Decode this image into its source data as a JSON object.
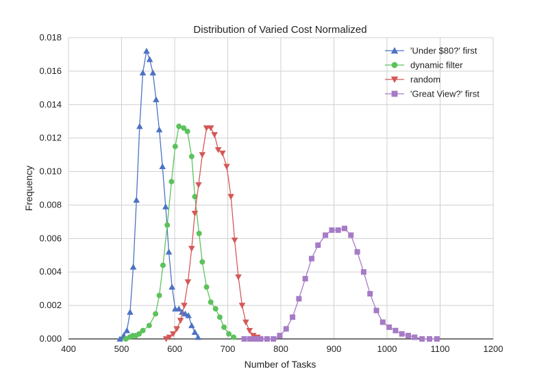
{
  "chart_data": {
    "type": "line",
    "title": "Distribution of Varied Cost Normalized",
    "xlabel": "Number of Tasks",
    "ylabel": "Frequency",
    "xlim": [
      400,
      1200
    ],
    "ylim": [
      0,
      0.018
    ],
    "x_ticks": [
      400,
      500,
      600,
      700,
      800,
      900,
      1000,
      1100,
      1200
    ],
    "y_ticks": [
      0,
      0.002,
      0.004,
      0.006,
      0.008,
      0.01,
      0.012,
      0.014,
      0.016,
      0.018
    ],
    "x_tick_labels": [
      "400",
      "500",
      "600",
      "700",
      "800",
      "900",
      "1000",
      "1100",
      "1200"
    ],
    "y_tick_labels": [
      "0.000",
      "0.002",
      "0.004",
      "0.006",
      "0.008",
      "0.010",
      "0.012",
      "0.014",
      "0.016",
      "0.018"
    ],
    "grid": true,
    "legend_position": "top-right",
    "series": [
      {
        "name": "'Under $80?' first",
        "color": "#4c72c4",
        "marker": "triangle-up",
        "points": [
          [
            497,
            0.0
          ],
          [
            504,
            0.0002
          ],
          [
            510,
            0.0005
          ],
          [
            516,
            0.0016
          ],
          [
            522,
            0.0043
          ],
          [
            528,
            0.0083
          ],
          [
            534,
            0.0127
          ],
          [
            540,
            0.0159
          ],
          [
            547,
            0.0172
          ],
          [
            553,
            0.0167
          ],
          [
            559,
            0.0159
          ],
          [
            565,
            0.0143
          ],
          [
            571,
            0.0125
          ],
          [
            577,
            0.0103
          ],
          [
            583,
            0.0079
          ],
          [
            589,
            0.0052
          ],
          [
            595,
            0.0031
          ],
          [
            601,
            0.0018
          ],
          [
            608,
            0.0018
          ],
          [
            614,
            0.0016
          ],
          [
            620,
            0.0015
          ],
          [
            626,
            0.0014
          ],
          [
            632,
            0.0008
          ],
          [
            638,
            0.0004
          ],
          [
            644,
            0.0001
          ]
        ]
      },
      {
        "name": "dynamic filter",
        "color": "#5cc25c",
        "marker": "circle",
        "points": [
          [
            508,
            0.0
          ],
          [
            515,
            0.0001
          ],
          [
            521,
            0.0002
          ],
          [
            527,
            0.0002
          ],
          [
            533,
            0.0003
          ],
          [
            540,
            0.0005
          ],
          [
            552,
            0.0008
          ],
          [
            564,
            0.0015
          ],
          [
            571,
            0.0026
          ],
          [
            578,
            0.0044
          ],
          [
            586,
            0.0068
          ],
          [
            594,
            0.0094
          ],
          [
            601,
            0.0115
          ],
          [
            608,
            0.0127
          ],
          [
            617,
            0.0126
          ],
          [
            624,
            0.0124
          ],
          [
            632,
            0.0109
          ],
          [
            638,
            0.0085
          ],
          [
            646,
            0.0063
          ],
          [
            652,
            0.0046
          ],
          [
            660,
            0.0031
          ],
          [
            668,
            0.0022
          ],
          [
            677,
            0.0018
          ],
          [
            685,
            0.0013
          ],
          [
            693,
            0.0007
          ],
          [
            702,
            0.0003
          ],
          [
            711,
            0.0001
          ]
        ]
      },
      {
        "name": "random",
        "color": "#d45858",
        "marker": "triangle-down",
        "points": [
          [
            584,
            0.0
          ],
          [
            590,
            0.0001
          ],
          [
            597,
            0.0003
          ],
          [
            604,
            0.0006
          ],
          [
            611,
            0.0011
          ],
          [
            618,
            0.002
          ],
          [
            625,
            0.0034
          ],
          [
            632,
            0.0054
          ],
          [
            638,
            0.0075
          ],
          [
            645,
            0.0092
          ],
          [
            652,
            0.011
          ],
          [
            660,
            0.0126
          ],
          [
            668,
            0.0126
          ],
          [
            675,
            0.0122
          ],
          [
            682,
            0.0113
          ],
          [
            690,
            0.0111
          ],
          [
            698,
            0.0103
          ],
          [
            706,
            0.0085
          ],
          [
            713,
            0.0059
          ],
          [
            720,
            0.0037
          ],
          [
            727,
            0.002
          ],
          [
            734,
            0.001
          ],
          [
            741,
            0.0005
          ],
          [
            748,
            0.0002
          ],
          [
            756,
            0.0001
          ]
        ]
      },
      {
        "name": "'Great View?' first",
        "color": "#a67bc6",
        "marker": "square",
        "points": [
          [
            731,
            0.0
          ],
          [
            742,
            0.0
          ],
          [
            752,
            0.0
          ],
          [
            762,
            0.0
          ],
          [
            774,
            0.0
          ],
          [
            786,
            0.0
          ],
          [
            798,
            0.0002
          ],
          [
            810,
            0.0006
          ],
          [
            822,
            0.0013
          ],
          [
            834,
            0.0024
          ],
          [
            846,
            0.0036
          ],
          [
            858,
            0.0048
          ],
          [
            870,
            0.0056
          ],
          [
            884,
            0.0062
          ],
          [
            896,
            0.0065
          ],
          [
            908,
            0.0065
          ],
          [
            920,
            0.0066
          ],
          [
            932,
            0.0062
          ],
          [
            944,
            0.0052
          ],
          [
            956,
            0.004
          ],
          [
            968,
            0.0027
          ],
          [
            980,
            0.0017
          ],
          [
            992,
            0.001
          ],
          [
            1004,
            0.0007
          ],
          [
            1016,
            0.0005
          ],
          [
            1028,
            0.0003
          ],
          [
            1040,
            0.0002
          ],
          [
            1052,
            0.0001
          ],
          [
            1066,
            0.0
          ],
          [
            1080,
            0.0
          ],
          [
            1094,
            0.0
          ]
        ]
      }
    ]
  }
}
